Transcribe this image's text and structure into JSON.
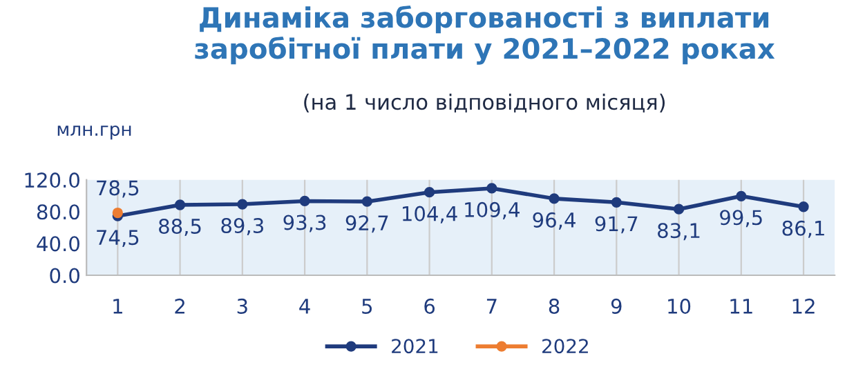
{
  "chart_data": {
    "type": "line",
    "title": "Динаміка заборгованості з виплати\nзаробітної плати у 2021–2022 роках",
    "subtitle": "(на 1 число відповідного місяця)",
    "ylabel": "млн.грн",
    "categories": [
      "1",
      "2",
      "3",
      "4",
      "5",
      "6",
      "7",
      "8",
      "9",
      "10",
      "11",
      "12"
    ],
    "series": [
      {
        "name": "2021",
        "color": "#1f3b7d",
        "values": [
          74.5,
          88.5,
          89.3,
          93.3,
          92.7,
          104.4,
          109.4,
          96.4,
          91.7,
          83.1,
          99.5,
          86.1
        ],
        "value_labels": [
          "74,5",
          "88,5",
          "89,3",
          "93,3",
          "92,7",
          "104,4",
          "109,4",
          "96,4",
          "91,7",
          "83,1",
          "99,5",
          "86,1"
        ]
      },
      {
        "name": "2022",
        "color": "#ed7d31",
        "values": [
          78.5,
          null,
          null,
          null,
          null,
          null,
          null,
          null,
          null,
          null,
          null,
          null
        ],
        "value_labels": [
          "78,5",
          null,
          null,
          null,
          null,
          null,
          null,
          null,
          null,
          null,
          null,
          null
        ]
      }
    ],
    "ylim": [
      0,
      120
    ],
    "yticks": [
      {
        "value": 0,
        "label": "0.0"
      },
      {
        "value": 40,
        "label": "40.0"
      },
      {
        "value": 80,
        "label": "80.0"
      },
      {
        "value": 120,
        "label": "120.0"
      }
    ],
    "grid": "x",
    "legend": "bottom",
    "marker": "circle",
    "line_style": "solid"
  }
}
